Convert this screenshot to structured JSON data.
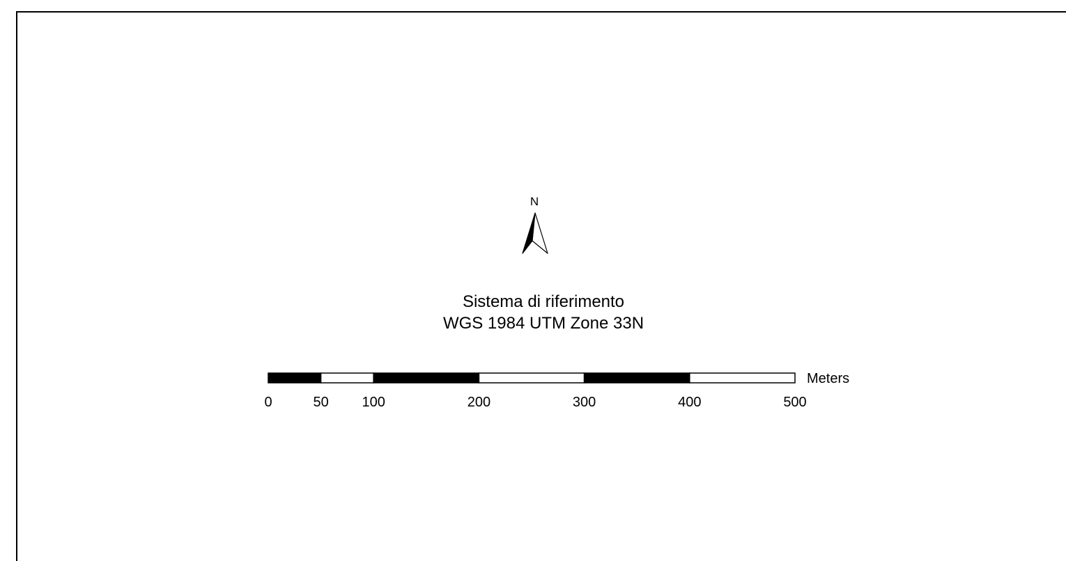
{
  "north_arrow": {
    "label": "N",
    "icon": "north-arrow-icon"
  },
  "reference_system": {
    "title": "Sistema di riferimento",
    "name": "WGS 1984 UTM Zone 33N"
  },
  "scale_bar": {
    "units": "Meters",
    "max_value": 500,
    "tick_labels": [
      "0",
      "50",
      "100",
      "200",
      "300",
      "400",
      "500"
    ],
    "tick_values": [
      0,
      50,
      100,
      200,
      300,
      400,
      500
    ],
    "segments": [
      {
        "from": 0,
        "to": 50,
        "fill": "#000000"
      },
      {
        "from": 50,
        "to": 100,
        "fill": "#ffffff"
      },
      {
        "from": 100,
        "to": 200,
        "fill": "#000000"
      },
      {
        "from": 200,
        "to": 300,
        "fill": "#ffffff"
      },
      {
        "from": 300,
        "to": 400,
        "fill": "#000000"
      },
      {
        "from": 400,
        "to": 500,
        "fill": "#ffffff"
      }
    ]
  }
}
